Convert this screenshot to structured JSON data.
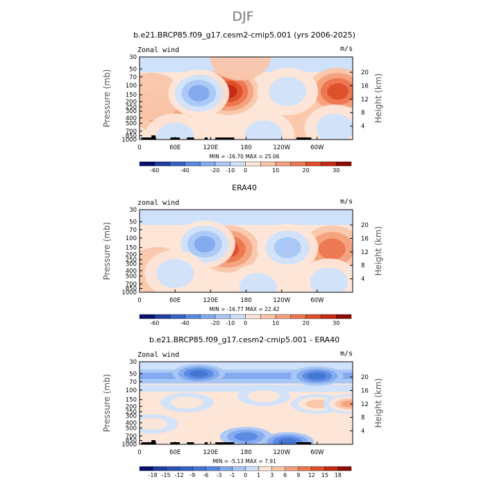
{
  "page": {
    "title": "DJF",
    "page_title_color": "#777777"
  },
  "chart_data": [
    {
      "type": "heatmap",
      "title": "b.e21.BRCP85.f09_g17.cesm2-cmip5.001 (yrs 2006-2025)",
      "left_label": "Zonal wind",
      "right_label": "m/s",
      "ylabel": "Pressure (mb)",
      "ylabel_right": "Height (km)",
      "x_ticks": [
        "0",
        "60E",
        "120E",
        "180",
        "120W",
        "60W"
      ],
      "y_ticks": [
        "30",
        "50",
        "70",
        "100",
        "150",
        "200",
        "250",
        "300",
        "400",
        "500",
        "700",
        "850",
        "1000"
      ],
      "height_ticks": [
        "20",
        "16",
        "12",
        "8",
        "4"
      ],
      "stats": "MIN = -16.70   MAX = 25.06",
      "min": -16.7,
      "max": 25.06,
      "colorbar_labels": [
        "-60",
        "-40",
        "-20",
        "-10",
        "0",
        "10",
        "20",
        "30"
      ],
      "colorbar_colors": [
        "#08106b",
        "#1f3ea3",
        "#3461c4",
        "#5889e0",
        "#83a9ee",
        "#a9c7f6",
        "#cfe1fb",
        "#fde6d8",
        "#f9c6ab",
        "#f4a07c",
        "#ec7750",
        "#de4e2b",
        "#c42a14",
        "#8c0d04"
      ],
      "features": [
        {
          "lon": 150,
          "lev": 130,
          "v": 21
        },
        {
          "lon": 335,
          "lev": 130,
          "v": 18
        },
        {
          "lon": 40,
          "lev": 300,
          "v": 9
        },
        {
          "lon": 20,
          "lev": 160,
          "v": 5
        },
        {
          "lon": 170,
          "lev": 30,
          "v": 4
        },
        {
          "lon": 285,
          "lev": 620,
          "v": 3
        },
        {
          "lon": 100,
          "lev": 140,
          "v": -14
        },
        {
          "lon": 250,
          "lev": 130,
          "v": -4
        },
        {
          "lon": 330,
          "lev": 620,
          "v": -3
        },
        {
          "lon": 210,
          "lev": 820,
          "v": -2
        },
        {
          "lon": 60,
          "lev": 900,
          "v": -2
        }
      ]
    },
    {
      "type": "heatmap",
      "title": "ERA40",
      "left_label": "zonal wind",
      "right_label": "m/s",
      "ylabel": "Pressure (mb)",
      "ylabel_right": "Height (km)",
      "x_ticks": [
        "0",
        "60E",
        "120E",
        "180",
        "120W",
        "60W"
      ],
      "y_ticks": [
        "30",
        "50",
        "70",
        "100",
        "150",
        "200",
        "250",
        "300",
        "400",
        "500",
        "700",
        "850",
        "1000"
      ],
      "height_ticks": [
        "20",
        "16",
        "12",
        "8",
        "4"
      ],
      "stats": "MIN = -16.77   MAX = 22.42",
      "min": -16.77,
      "max": 22.42,
      "colorbar_labels": [
        "-60",
        "-40",
        "-20",
        "-10",
        "0",
        "10",
        "20",
        "30"
      ],
      "colorbar_colors": [
        "#08106b",
        "#1f3ea3",
        "#3461c4",
        "#5889e0",
        "#83a9ee",
        "#a9c7f6",
        "#cfe1fb",
        "#fde6d8",
        "#f9c6ab",
        "#f4a07c",
        "#ec7750",
        "#de4e2b",
        "#c42a14",
        "#8c0d04"
      ],
      "features": [
        {
          "lon": 150,
          "lev": 160,
          "v": 20
        },
        {
          "lon": 325,
          "lev": 160,
          "v": 14
        },
        {
          "lon": 30,
          "lev": 400,
          "v": 5
        },
        {
          "lon": 110,
          "lev": 130,
          "v": -15
        },
        {
          "lon": 250,
          "lev": 150,
          "v": -5
        },
        {
          "lon": 60,
          "lev": 450,
          "v": -4
        },
        {
          "lon": 200,
          "lev": 820,
          "v": -2
        },
        {
          "lon": 320,
          "lev": 650,
          "v": -2
        }
      ]
    },
    {
      "type": "heatmap",
      "title": "b.e21.BRCP85.f09_g17.cesm2-cmip5.001 - ERA40",
      "left_label": "Zonal wind",
      "right_label": "m/s",
      "ylabel": "Pressure (mb)",
      "ylabel_right": "Height (km)",
      "x_ticks": [
        "0",
        "60E",
        "120E",
        "180",
        "120W",
        "60W"
      ],
      "y_ticks": [
        "30",
        "50",
        "70",
        "100",
        "150",
        "200",
        "250",
        "300",
        "400",
        "500",
        "700",
        "850",
        "1000"
      ],
      "height_ticks": [
        "20",
        "16",
        "12",
        "8",
        "4"
      ],
      "stats": "MIN = -5.13   MAX =  7.91",
      "min": -5.13,
      "max": 7.91,
      "colorbar_labels": [
        "-18",
        "-15",
        "-12",
        "-9",
        "-6",
        "-3",
        "-1",
        "0",
        "1",
        "3",
        "6",
        "9",
        "12",
        "15",
        "18"
      ],
      "colorbar_colors": [
        "#08106b",
        "#1f3ea3",
        "#2c52b8",
        "#3461c4",
        "#4575d2",
        "#5889e0",
        "#83a9ee",
        "#a9c7f6",
        "#cfe1fb",
        "#fde6d8",
        "#f9c6ab",
        "#f4a07c",
        "#ec7750",
        "#de4e2b",
        "#c42a14",
        "#8c0d04"
      ],
      "features": [
        {
          "lon": 300,
          "lev": 55,
          "v": -4
        },
        {
          "lon": 100,
          "lev": 50,
          "v": -3.5
        },
        {
          "lon": 300,
          "lev": 180,
          "v": 3.5
        },
        {
          "lon": 80,
          "lev": 170,
          "v": 3
        },
        {
          "lon": 355,
          "lev": 180,
          "v": 7.5
        },
        {
          "lon": 210,
          "lev": 130,
          "v": 2
        },
        {
          "lon": 180,
          "lev": 720,
          "v": -1.5
        },
        {
          "lon": 250,
          "lev": 900,
          "v": -3
        },
        {
          "lon": 20,
          "lev": 420,
          "v": 2
        }
      ]
    }
  ]
}
